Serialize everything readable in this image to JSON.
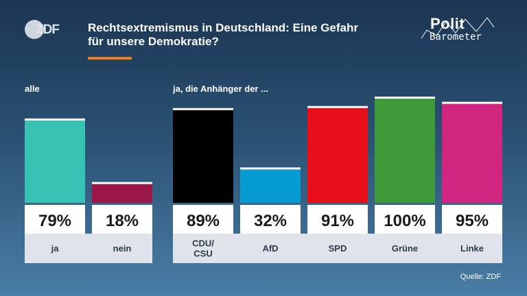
{
  "header": {
    "logo_text": "ZDF",
    "title_line1": "Rechtsextremismus in Deutschland: Eine Gefahr",
    "title_line2": "für unsere Demokratie?",
    "brand_top": "Polit",
    "brand_bottom": "Barometer"
  },
  "groups": [
    {
      "label": "alle"
    },
    {
      "label": "ja, die Anhänger der ..."
    }
  ],
  "source": "Quelle: ZDF",
  "chart_data": {
    "type": "bar",
    "categories": [
      "ja",
      "nein",
      "CDU/\nCSU",
      "AfD",
      "SPD",
      "Grüne",
      "Linke"
    ],
    "values": [
      79,
      18,
      89,
      32,
      91,
      100,
      95
    ],
    "value_labels": [
      "79%",
      "18%",
      "89%",
      "32%",
      "91%",
      "100%",
      "95%"
    ],
    "colors": [
      "#39c2b4",
      "#9b1747",
      "#000000",
      "#069bd1",
      "#e50e19",
      "#3f9a39",
      "#d12680"
    ],
    "ylim": [
      0,
      100
    ],
    "unit": "%"
  }
}
